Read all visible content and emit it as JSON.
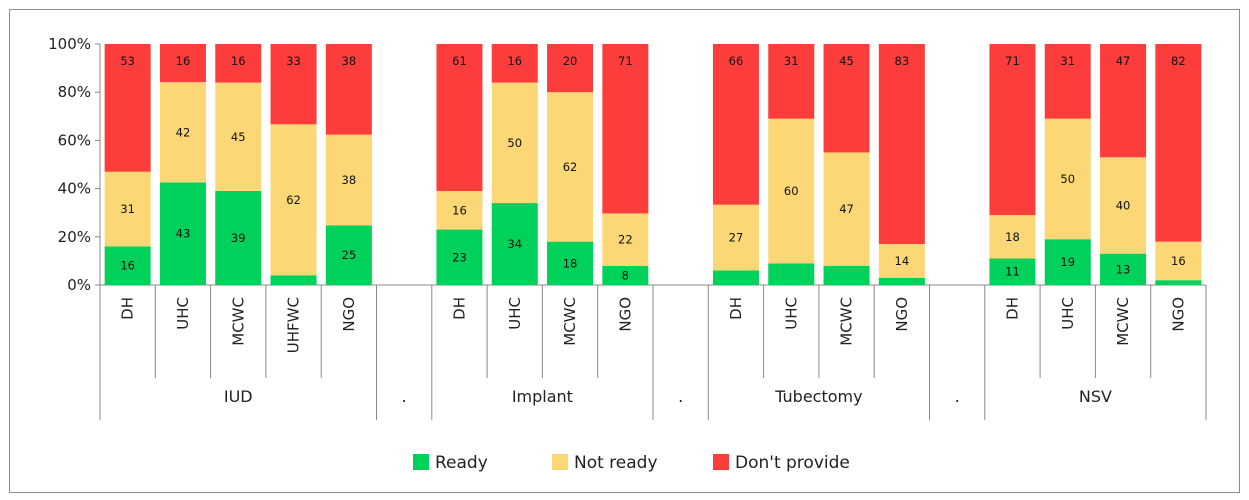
{
  "chart_data": {
    "type": "bar",
    "stacked": true,
    "percent_stacked": true,
    "y_ticks": [
      "0%",
      "20%",
      "40%",
      "60%",
      "80%",
      "100%"
    ],
    "ylim": [
      0,
      100
    ],
    "colors": {
      "ready": "#00d15a",
      "not_ready": "#fcd775",
      "dont_provide": "#fd3c3c"
    },
    "series_names": [
      "Ready",
      "Not ready",
      "Don't provide"
    ],
    "legend_position": "bottom",
    "groups": [
      {
        "name": "IUD",
        "categories": [
          {
            "name": "DH",
            "ready": 16,
            "not_ready": 31,
            "dont_provide": 53
          },
          {
            "name": "UHC",
            "ready": 43,
            "not_ready": 42,
            "dont_provide": 16
          },
          {
            "name": "MCWC",
            "ready": 39,
            "not_ready": 45,
            "dont_provide": 16
          },
          {
            "name": "UHFWC",
            "ready": 4,
            "not_ready": 62,
            "dont_provide": 33
          },
          {
            "name": "NGO",
            "ready": 25,
            "not_ready": 38,
            "dont_provide": 38
          }
        ]
      },
      {
        "name": ".",
        "categories": [
          {
            "name": "",
            "blank": true
          }
        ]
      },
      {
        "name": "Implant",
        "categories": [
          {
            "name": "DH",
            "ready": 23,
            "not_ready": 16,
            "dont_provide": 61
          },
          {
            "name": "UHC",
            "ready": 34,
            "not_ready": 50,
            "dont_provide": 16
          },
          {
            "name": "MCWC",
            "ready": 18,
            "not_ready": 62,
            "dont_provide": 20
          },
          {
            "name": "NGO",
            "ready": 8,
            "not_ready": 22,
            "dont_provide": 71
          }
        ]
      },
      {
        "name": ".",
        "categories": [
          {
            "name": "",
            "blank": true
          }
        ]
      },
      {
        "name": "Tubectomy",
        "categories": [
          {
            "name": "DH",
            "ready": 6,
            "not_ready": 27,
            "dont_provide": 66
          },
          {
            "name": "UHC",
            "ready": 9,
            "not_ready": 60,
            "dont_provide": 31
          },
          {
            "name": "MCWC",
            "ready": 8,
            "not_ready": 47,
            "dont_provide": 45
          },
          {
            "name": "NGO",
            "ready": 3,
            "not_ready": 14,
            "dont_provide": 83
          }
        ]
      },
      {
        "name": ".",
        "categories": [
          {
            "name": "",
            "blank": true
          }
        ]
      },
      {
        "name": "NSV",
        "categories": [
          {
            "name": "DH",
            "ready": 11,
            "not_ready": 18,
            "dont_provide": 71
          },
          {
            "name": "UHC",
            "ready": 19,
            "not_ready": 50,
            "dont_provide": 31
          },
          {
            "name": "MCWC",
            "ready": 13,
            "not_ready": 40,
            "dont_provide": 47
          },
          {
            "name": "NGO",
            "ready": 2,
            "not_ready": 16,
            "dont_provide": 82
          }
        ]
      }
    ],
    "segment_labels": [
      [
        "16",
        "31",
        "53"
      ],
      [
        "43",
        "42",
        "16"
      ],
      [
        "39",
        "45",
        "16"
      ],
      [
        "",
        "62",
        "33"
      ],
      [
        "25",
        "38",
        "38"
      ],
      null,
      [
        "23",
        "16",
        "61"
      ],
      [
        "34",
        "50",
        "16"
      ],
      [
        "18",
        "62",
        "20"
      ],
      [
        "8",
        "22",
        "71"
      ],
      null,
      [
        "",
        "27",
        "66"
      ],
      [
        "",
        "60",
        "31"
      ],
      [
        "",
        "47",
        "45"
      ],
      [
        "",
        "14",
        "83"
      ],
      null,
      [
        "11",
        "18",
        "71"
      ],
      [
        "19",
        "50",
        "31"
      ],
      [
        "13",
        "40",
        "47"
      ],
      [
        "",
        "16",
        "82"
      ]
    ]
  }
}
